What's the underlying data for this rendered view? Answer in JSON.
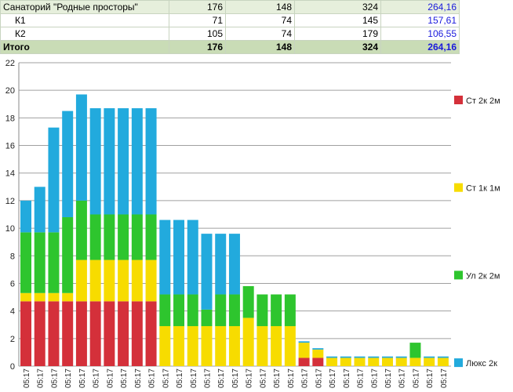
{
  "table": {
    "rows": [
      [
        "Санаторий \"Родные просторы\"",
        "176",
        "148",
        "324",
        "264,16"
      ],
      [
        "К1",
        "71",
        "74",
        "145",
        "157,61"
      ],
      [
        "К2",
        "105",
        "74",
        "179",
        "106,55"
      ],
      [
        "Итого",
        "176",
        "148",
        "324",
        "264,16"
      ]
    ]
  },
  "chart_data": {
    "type": "stacked_bar",
    "categories": [
      "05:17",
      "05:17",
      "05:17",
      "05:17",
      "05:17",
      "05:17",
      "05:17",
      "05:17",
      "05:17",
      "05:17",
      "05:17",
      "05:17",
      "05:17",
      "05:17",
      "05:17",
      "05:17",
      "05:17",
      "05:17",
      "05:17",
      "05:17",
      "05:17",
      "05:17",
      "05:17",
      "05:17",
      "05:17",
      "05:17",
      "05:17",
      "05:17",
      "05:17",
      "05:17",
      "05:17"
    ],
    "series": [
      {
        "name": "Ст 2к 2м",
        "color": "#d4303a",
        "values": [
          4.7,
          4.7,
          4.7,
          4.7,
          4.7,
          4.7,
          4.7,
          4.7,
          4.7,
          4.7,
          0,
          0,
          0,
          0,
          0,
          0,
          0,
          0,
          0,
          0,
          0.6,
          0.6,
          0,
          0,
          0,
          0,
          0,
          0,
          0,
          0,
          0
        ]
      },
      {
        "name": "Ст 1к 1м",
        "color": "#f7dc00",
        "values": [
          0.6,
          0.6,
          0.6,
          0.6,
          3.0,
          3.0,
          3.0,
          3.0,
          3.0,
          3.0,
          2.9,
          2.9,
          2.9,
          2.9,
          2.9,
          2.9,
          3.5,
          2.9,
          2.9,
          2.9,
          1.1,
          0.6,
          0.6,
          0.6,
          0.6,
          0.6,
          0.6,
          0.6,
          0.6,
          0.6,
          0.6
        ]
      },
      {
        "name": "Ул 2к 2м",
        "color": "#2ec52e",
        "values": [
          4.4,
          4.4,
          4.4,
          5.5,
          4.3,
          3.3,
          3.3,
          3.3,
          3.3,
          3.3,
          2.3,
          2.3,
          2.3,
          1.2,
          2.3,
          2.3,
          2.3,
          2.3,
          2.3,
          2.3,
          0,
          0,
          0,
          0,
          0,
          0,
          0,
          0,
          1.1,
          0,
          0
        ]
      },
      {
        "name": "Люкс 2к",
        "color": "#22aadd",
        "values": [
          2.3,
          3.3,
          7.6,
          7.7,
          7.7,
          7.7,
          7.7,
          7.7,
          7.7,
          7.7,
          5.4,
          5.4,
          5.4,
          5.5,
          4.4,
          4.4,
          0,
          0,
          0,
          0,
          0.1,
          0.1,
          0.1,
          0.1,
          0.1,
          0.1,
          0.1,
          0.1,
          0,
          0.1,
          0.1
        ]
      }
    ],
    "ylim": [
      0,
      22
    ],
    "yticks": [
      0,
      2,
      4,
      6,
      8,
      10,
      12,
      14,
      16,
      18,
      20,
      22
    ],
    "grid": true
  }
}
